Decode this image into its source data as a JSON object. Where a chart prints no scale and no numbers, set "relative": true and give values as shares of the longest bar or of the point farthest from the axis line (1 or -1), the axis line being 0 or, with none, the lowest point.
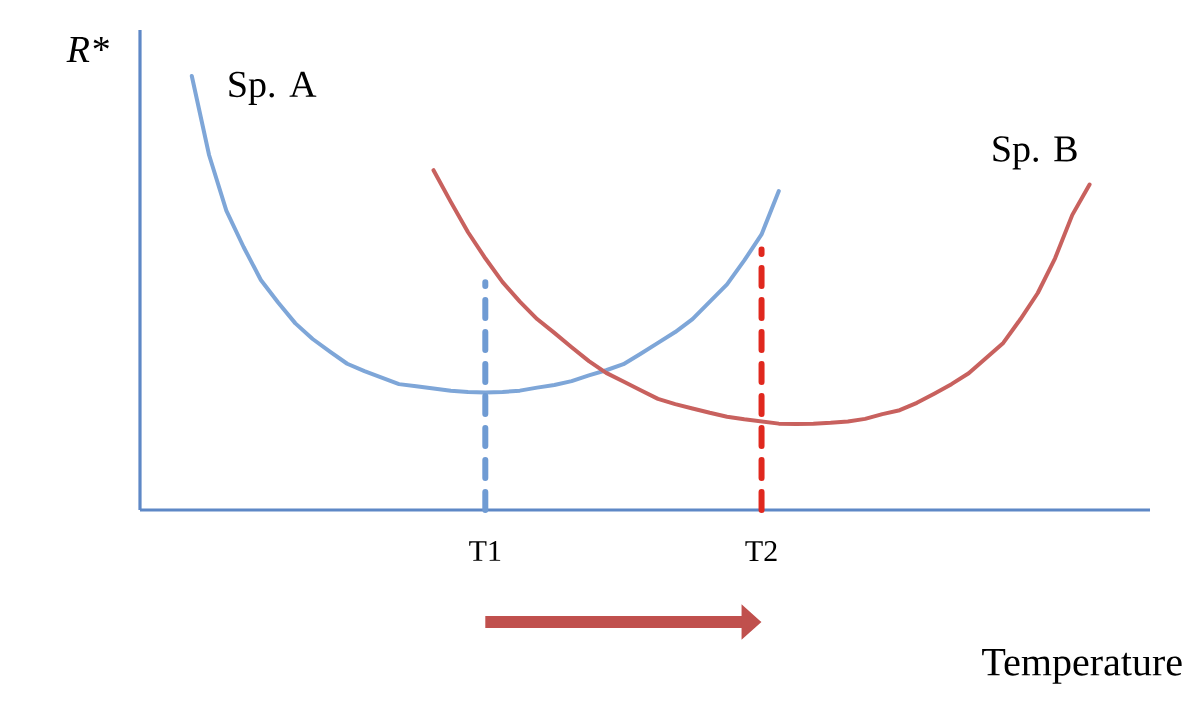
{
  "chart_data": {
    "type": "line",
    "relative": true,
    "xlabel": "Temperature",
    "ylabel": "R*",
    "categories": [
      null,
      null,
      null,
      null,
      null,
      null,
      null,
      null,
      null,
      null,
      null,
      null,
      null,
      null,
      null,
      null,
      null,
      null,
      null,
      null,
      "T1",
      null,
      null,
      null,
      null,
      null,
      null,
      null,
      null,
      null,
      null,
      null,
      null,
      null,
      null,
      null,
      "T2",
      null,
      null,
      null,
      null,
      null,
      null,
      null,
      null,
      null,
      null,
      null,
      null,
      null,
      null,
      null,
      null,
      null,
      null,
      null,
      null,
      null,
      null
    ],
    "grid": false,
    "marker": "none",
    "series": [
      {
        "name": "Sp. A",
        "color": "#7ea6d8",
        "values": [
          null,
          null,
          null,
          1,
          0.818,
          0.69,
          0.606,
          0.53,
          0.478,
          0.43,
          0.394,
          0.365,
          0.337,
          0.32,
          0.305,
          0.29,
          0.285,
          0.28,
          0.275,
          0.272,
          0.271,
          0.272,
          0.275,
          0.282,
          0.288,
          0.297,
          0.31,
          0.322,
          0.336,
          0.36,
          0.385,
          0.41,
          0.44,
          0.48,
          0.52,
          0.575,
          0.635,
          0.735,
          null,
          null,
          null,
          null,
          null,
          null,
          null,
          null,
          null,
          null,
          null,
          null,
          null,
          null,
          null,
          null,
          null,
          null,
          null,
          null,
          null
        ]
      },
      {
        "name": "Sp. B",
        "color": "#c8615e",
        "values": [
          null,
          null,
          null,
          null,
          null,
          null,
          null,
          null,
          null,
          null,
          null,
          null,
          null,
          null,
          null,
          null,
          null,
          0.783,
          0.71,
          0.64,
          0.58,
          0.525,
          0.48,
          0.44,
          0.408,
          0.375,
          0.343,
          0.316,
          0.296,
          0.276,
          0.256,
          0.244,
          0.234,
          0.224,
          0.215,
          0.209,
          0.204,
          0.199,
          0.198,
          0.199,
          0.201,
          0.204,
          0.21,
          0.221,
          0.23,
          0.247,
          0.268,
          0.29,
          0.315,
          0.35,
          0.385,
          0.44,
          0.5,
          0.58,
          0.68,
          0.75,
          null,
          null,
          null
        ]
      },
      {
        "color": "#6f9bd3",
        "line_style": "dashed",
        "x": [
          "T1",
          "T1"
        ],
        "values": [
          0,
          0.525
        ]
      },
      {
        "color": "#e0281e",
        "line_style": "dashed",
        "x": [
          "T2",
          "T2"
        ],
        "values": [
          0,
          0.6
        ]
      }
    ]
  }
}
